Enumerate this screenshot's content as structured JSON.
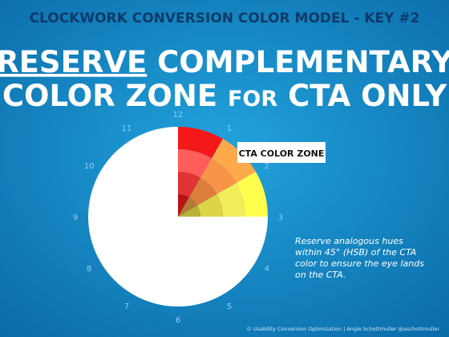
{
  "header": {
    "kicker": "CLOCKWORK CONVERSION COLOR MODEL - KEY #2",
    "title_line1_underlined": "RESERVE",
    "title_line1_rest": "COMPLEMENTARY",
    "title_line2_start": "COLOR ZONE",
    "title_line2_small": "FOR",
    "title_line2_end": "CTA ONLY"
  },
  "clock_labels": [
    "12",
    "1",
    "2",
    "3",
    "4",
    "5",
    "6",
    "7",
    "8",
    "9",
    "10",
    "11"
  ],
  "callout": "CTA COLOR ZONE",
  "note": [
    "Reserve analogous hues",
    "within 45° (HSB) of the CTA",
    "color to ensure the eye lands",
    "on the CTA."
  ],
  "footer": "© Usability Conversion Optimization  |  Angie Schottmuller  @aschottmuller"
}
